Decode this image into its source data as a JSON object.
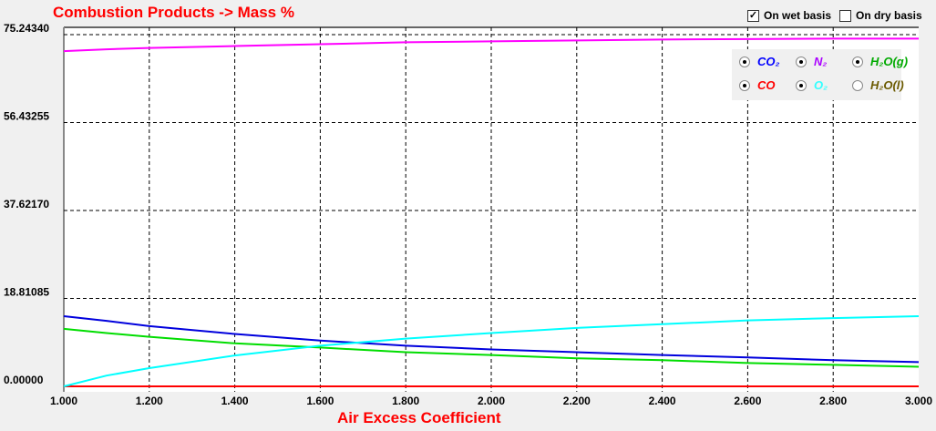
{
  "chart_data": {
    "type": "line",
    "title": "Combustion Products -> Mass %",
    "xlabel": "Air Excess Coefficient",
    "ylabel": "",
    "xlim": [
      1.0,
      3.0
    ],
    "ylim": [
      0,
      75.2434
    ],
    "xticks": [
      "1.000",
      "1.200",
      "1.400",
      "1.600",
      "1.800",
      "2.000",
      "2.200",
      "2.400",
      "2.600",
      "2.800",
      "3.000"
    ],
    "yticks": [
      "0.00000",
      "18.81085",
      "37.62170",
      "56.43255",
      "75.24340"
    ],
    "grid": true,
    "legend_position": "top-right",
    "x": [
      1.0,
      1.1,
      1.2,
      1.4,
      1.6,
      1.8,
      2.0,
      2.2,
      2.4,
      2.6,
      2.8,
      3.0
    ],
    "series": [
      {
        "name": "CO2",
        "color": "#0000dd",
        "values": [
          15.0,
          14.0,
          12.9,
          11.2,
          9.8,
          8.7,
          7.9,
          7.3,
          6.7,
          6.2,
          5.6,
          5.2
        ]
      },
      {
        "name": "N2",
        "color": "#ff00ff",
        "values": [
          71.7,
          72.1,
          72.4,
          72.8,
          73.2,
          73.6,
          73.8,
          74.0,
          74.2,
          74.3,
          74.4,
          74.4
        ]
      },
      {
        "name": "H2O(g)",
        "color": "#00dd00",
        "values": [
          12.3,
          11.4,
          10.6,
          9.2,
          8.3,
          7.3,
          6.7,
          6.0,
          5.6,
          5.0,
          4.6,
          4.2
        ]
      },
      {
        "name": "CO",
        "color": "#ff0000",
        "values": [
          0,
          0,
          0,
          0,
          0,
          0,
          0,
          0,
          0,
          0,
          0,
          0
        ]
      },
      {
        "name": "O2",
        "color": "#00ffff",
        "values": [
          0,
          2.3,
          3.9,
          6.6,
          8.7,
          10.2,
          11.4,
          12.5,
          13.3,
          14.1,
          14.6,
          15.0
        ]
      }
    ]
  },
  "legend": [
    {
      "label": "CO₂",
      "color": "#0000ff",
      "selected": true
    },
    {
      "label": "N₂",
      "color": "#aa00ff",
      "selected": true
    },
    {
      "label": "H₂O(g)",
      "color": "#00aa00",
      "selected": true
    },
    {
      "label": "CO",
      "color": "#ff0000",
      "selected": true
    },
    {
      "label": "O₂",
      "color": "#33ffff",
      "selected": true
    },
    {
      "label": "H₂O(l)",
      "color": "#6b5a00",
      "selected": false
    }
  ],
  "options": {
    "wet_label": "On wet basis",
    "wet_checked": true,
    "dry_label": "On dry basis",
    "dry_checked": false
  }
}
